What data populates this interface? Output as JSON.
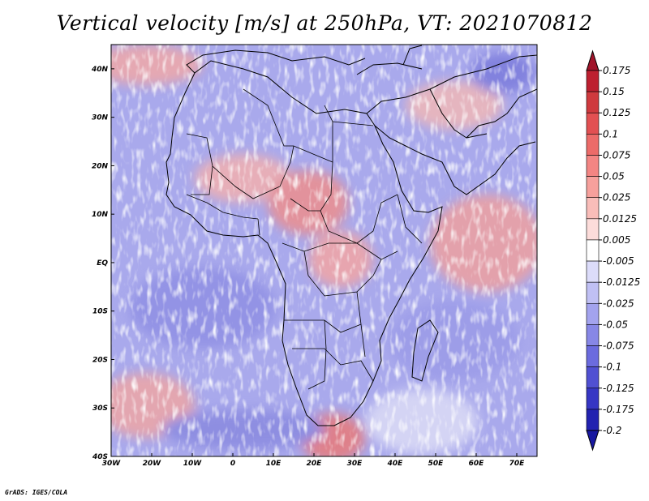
{
  "title": "Vertical velocity [m/s] at 250hPa, VT: 2021070812",
  "credit": "GrADS: IGES/COLA",
  "map": {
    "lon_range": [
      -30,
      75
    ],
    "lat_range": [
      -40,
      45
    ],
    "x_ticks": [
      "30W",
      "20W",
      "10W",
      "0",
      "10E",
      "20E",
      "30E",
      "40E",
      "50E",
      "60E",
      "70E"
    ],
    "y_ticks": [
      "40N",
      "30N",
      "20N",
      "10N",
      "EQ",
      "10S",
      "20S",
      "30S",
      "40S"
    ]
  },
  "colorbar": {
    "labels": [
      "0.175",
      "0.15",
      "0.125",
      "0.1",
      "0.075",
      "0.05",
      "0.025",
      "0.0125",
      "0.005",
      "-0.005",
      "-0.0125",
      "-0.025",
      "-0.05",
      "-0.075",
      "-0.1",
      "-0.125",
      "-0.175",
      "-0.2"
    ],
    "colors": [
      "#a0142a",
      "#bd2030",
      "#cf3a3e",
      "#e25052",
      "#ec6b69",
      "#f38583",
      "#f6a09c",
      "#f9bdb9",
      "#fcdcda",
      "#ffffff",
      "#dcdcfa",
      "#c0c0f4",
      "#a3a3ee",
      "#8787e6",
      "#6b6bde",
      "#5050d2",
      "#3636c4",
      "#2222b0",
      "#1818a0"
    ]
  }
}
